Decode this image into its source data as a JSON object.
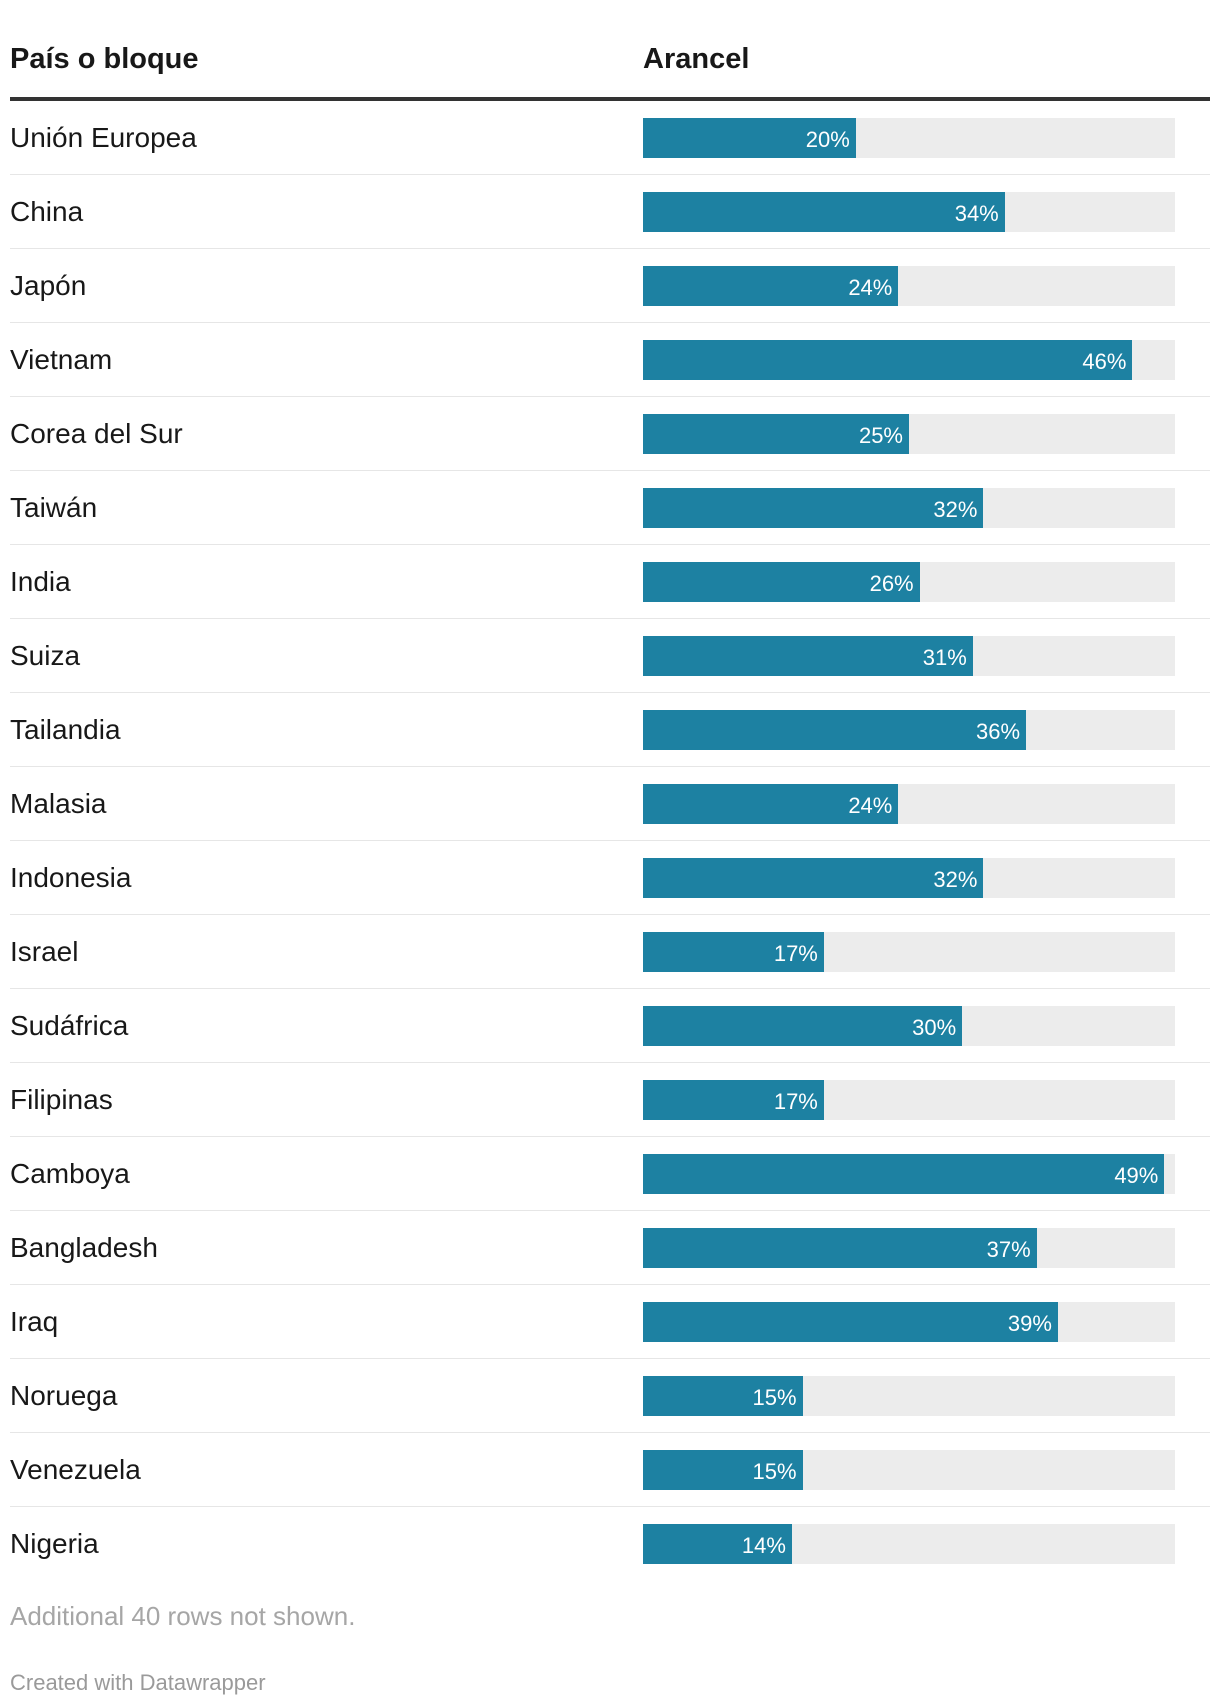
{
  "table": {
    "col_country": "País o bloque",
    "col_tariff": "Arancel"
  },
  "chart_data": {
    "type": "bar",
    "orientation": "horizontal",
    "xlim": [
      0,
      50
    ],
    "bar_color": "#1d81a2",
    "track_color": "#ececec",
    "categories": [
      "Unión Europea",
      "China",
      "Japón",
      "Vietnam",
      "Corea del Sur",
      "Taiwán",
      "India",
      "Suiza",
      "Tailandia",
      "Malasia",
      "Indonesia",
      "Israel",
      "Sudáfrica",
      "Filipinas",
      "Camboya",
      "Bangladesh",
      "Iraq",
      "Noruega",
      "Venezuela",
      "Nigeria"
    ],
    "values": [
      20,
      34,
      24,
      46,
      25,
      32,
      26,
      31,
      36,
      24,
      32,
      17,
      30,
      17,
      49,
      37,
      39,
      15,
      15,
      14
    ],
    "value_labels": [
      "20%",
      "34%",
      "24%",
      "46%",
      "25%",
      "32%",
      "26%",
      "31%",
      "36%",
      "24%",
      "32%",
      "17%",
      "30%",
      "17%",
      "49%",
      "37%",
      "39%",
      "15%",
      "15%",
      "14%"
    ]
  },
  "footer": {
    "note": "Additional 40 rows not shown.",
    "credit": "Created with Datawrapper"
  }
}
